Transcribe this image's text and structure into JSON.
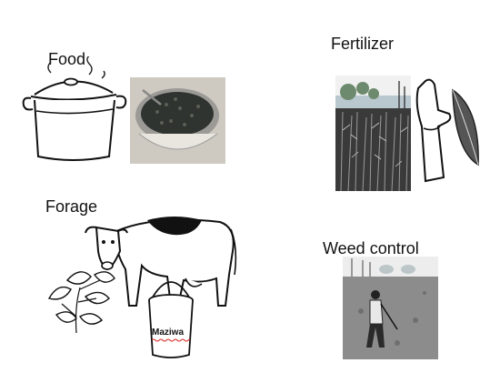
{
  "labels": {
    "food": "Food",
    "fertilizer": "Fertilizer",
    "forage": "Forage",
    "weed_control": "Weed control"
  },
  "bucket_label": "Maziwa",
  "colors": {
    "text": "#111111",
    "spellcheck_underline": "#d9231f"
  },
  "icons": [
    "cooking-pot-icon",
    "bean-bowl-photo",
    "maize-field-photo",
    "gloved-arm-icon",
    "leaf-icon",
    "cow-icon",
    "forage-plant-icon",
    "milk-bucket-icon",
    "farmer-weeding-photo"
  ]
}
